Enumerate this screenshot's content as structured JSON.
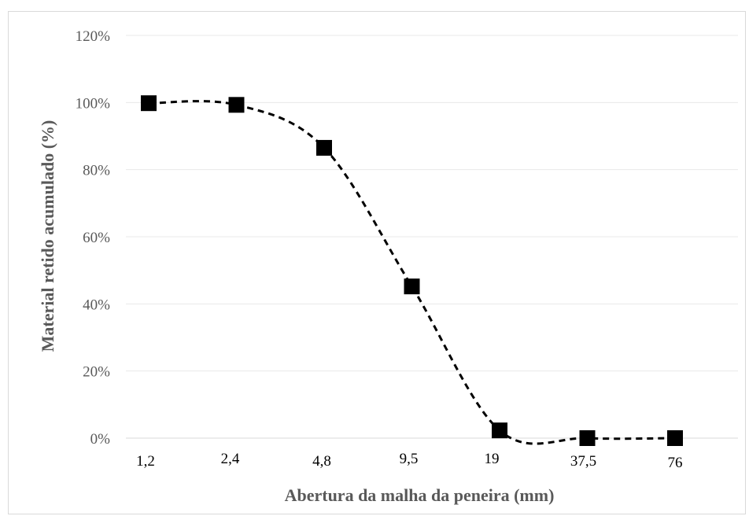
{
  "chart_data": {
    "type": "line",
    "xlabel": "Abertura da malha da peneira (mm)",
    "ylabel": "Material retido acumulado (%)",
    "categories": [
      "1,2",
      "2,4",
      "4,8",
      "9,5",
      "19",
      "37,5",
      "76"
    ],
    "series": [
      {
        "values": [
          99.8,
          99.3,
          86.5,
          45.2,
          2.3,
          0,
          0
        ]
      }
    ],
    "ylim": [
      0,
      120
    ],
    "yticks": [
      "0%",
      "20%",
      "40%",
      "60%",
      "80%",
      "100%",
      "120%"
    ],
    "grid": true,
    "legend": "none",
    "colors": {
      "line": "#000000",
      "marker": "#000000",
      "grid": "#e8e8e8",
      "axis_text": "#595959"
    },
    "line_style": "dashed smooth",
    "marker": "square"
  }
}
